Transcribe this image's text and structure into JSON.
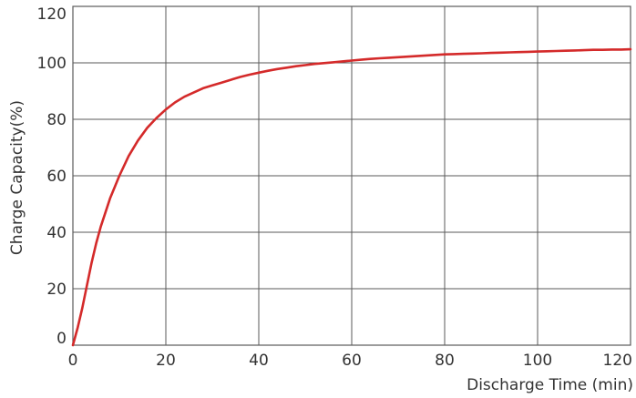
{
  "chart_data": {
    "type": "line",
    "title": "",
    "xlabel": "Discharge Time (min)",
    "ylabel": "Charge Capacity(%)",
    "xlim": [
      0,
      120
    ],
    "ylim": [
      0,
      120
    ],
    "xticks": [
      0,
      20,
      40,
      60,
      80,
      100,
      120
    ],
    "yticks": [
      0,
      20,
      40,
      60,
      80,
      100,
      120
    ],
    "grid": true,
    "legend": "none",
    "series": [
      {
        "color": "#d42a2a",
        "x": [
          0,
          1,
          2,
          3,
          4,
          5,
          6,
          8,
          10,
          12,
          14,
          16,
          18,
          20,
          22,
          24,
          26,
          28,
          30,
          32,
          34,
          36,
          38,
          40,
          42,
          44,
          46,
          48,
          50,
          52,
          54,
          56,
          58,
          60,
          62,
          64,
          66,
          68,
          70,
          72,
          74,
          76,
          78,
          80,
          82,
          84,
          86,
          88,
          90,
          92,
          94,
          96,
          98,
          100,
          102,
          104,
          106,
          108,
          110,
          112,
          114,
          116,
          118,
          120
        ],
        "y": [
          0,
          6,
          13,
          21,
          29,
          36,
          42,
          52,
          60,
          67,
          72.5,
          77,
          80.5,
          83.5,
          86,
          88,
          89.5,
          91,
          92,
          93,
          94,
          95,
          95.8,
          96.5,
          97.2,
          97.8,
          98.3,
          98.8,
          99.2,
          99.6,
          99.9,
          100.2,
          100.5,
          100.8,
          101.1,
          101.4,
          101.6,
          101.8,
          102,
          102.2,
          102.4,
          102.6,
          102.8,
          103,
          103.1,
          103.2,
          103.3,
          103.4,
          103.5,
          103.6,
          103.7,
          103.8,
          103.9,
          104,
          104.1,
          104.2,
          104.3,
          104.4,
          104.5,
          104.6,
          104.6,
          104.7,
          104.7,
          104.8
        ]
      }
    ]
  }
}
